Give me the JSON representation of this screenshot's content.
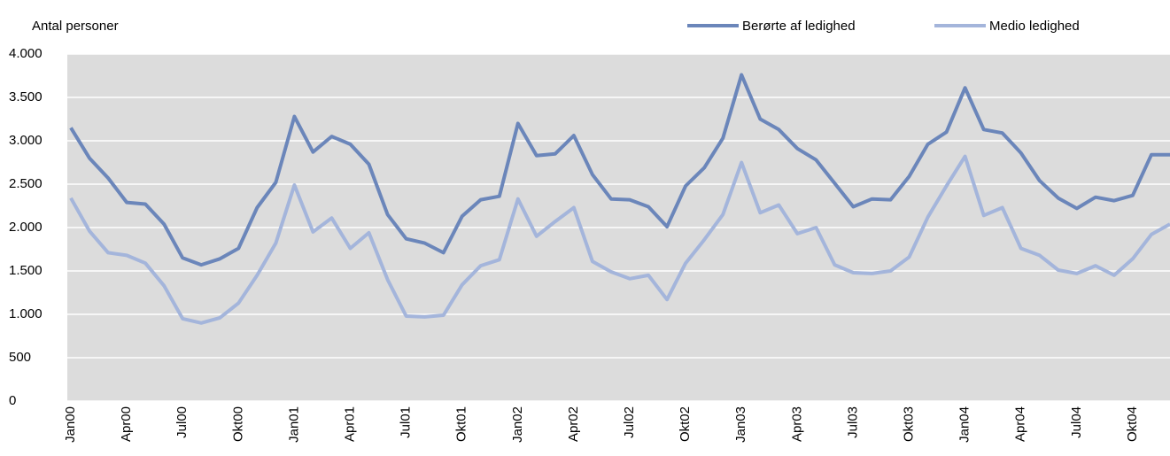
{
  "chart_data": {
    "type": "line",
    "ylabel": "Antal personer",
    "categories": [
      "Jan00",
      null,
      null,
      "Apr00",
      null,
      null,
      "Jul00",
      null,
      null,
      "Okt00",
      null,
      null,
      "Jan01",
      null,
      null,
      "Apr01",
      null,
      null,
      "Jul01",
      null,
      null,
      "Okt01",
      null,
      null,
      "Jan02",
      null,
      null,
      "Apr02",
      null,
      null,
      "Jul02",
      null,
      null,
      "Okt02",
      null,
      null,
      "Jan03",
      null,
      null,
      "Apr03",
      null,
      null,
      "Jul03",
      null,
      null,
      "Okt03",
      null,
      null,
      "Jan04",
      null,
      null,
      "Apr04",
      null,
      null,
      "Jul04",
      null,
      null,
      "Okt04",
      null,
      null
    ],
    "series": [
      {
        "name": "Berørte af ledighed",
        "color": "#6b86ba",
        "values": [
          3150,
          2800,
          2570,
          2290,
          2270,
          2040,
          1650,
          1570,
          1640,
          1760,
          2230,
          2520,
          3280,
          2870,
          3050,
          2960,
          2730,
          2150,
          1870,
          1820,
          1710,
          2130,
          2320,
          2360,
          3200,
          2830,
          2850,
          3060,
          2610,
          2330,
          2320,
          2240,
          2010,
          2480,
          2690,
          3030,
          3760,
          3250,
          3130,
          2910,
          2780,
          2510,
          2240,
          2330,
          2320,
          2590,
          2960,
          3100,
          3610,
          3130,
          3090,
          2860,
          2540,
          2340,
          2220,
          2350,
          2310,
          2370,
          2840,
          2840
        ]
      },
      {
        "name": "Medio ledighed",
        "color": "#a4b5db",
        "values": [
          2340,
          1960,
          1710,
          1680,
          1590,
          1330,
          950,
          900,
          960,
          1130,
          1450,
          1820,
          2490,
          1950,
          2110,
          1760,
          1940,
          1400,
          980,
          970,
          990,
          1340,
          1560,
          1630,
          2330,
          1900,
          2070,
          2230,
          1610,
          1490,
          1410,
          1450,
          1170,
          1590,
          1860,
          2150,
          2750,
          2170,
          2260,
          1930,
          2000,
          1570,
          1480,
          1470,
          1500,
          1660,
          2120,
          2480,
          2820,
          2140,
          2230,
          1760,
          1680,
          1510,
          1470,
          1560,
          1450,
          1640,
          1920,
          2040
        ]
      }
    ],
    "ylim": [
      0,
      4000
    ],
    "yticks": [
      0,
      500,
      {
        "value": 1000,
        "label": "1.000"
      },
      {
        "value": 1500,
        "label": "1.500"
      },
      {
        "value": 2000,
        "label": "2.000"
      },
      {
        "value": 2500,
        "label": "2.500"
      },
      {
        "value": 3000,
        "label": "3.000"
      },
      {
        "value": 3500,
        "label": "3.500"
      },
      {
        "value": 4000,
        "label": "4.000"
      }
    ],
    "grid": true
  }
}
